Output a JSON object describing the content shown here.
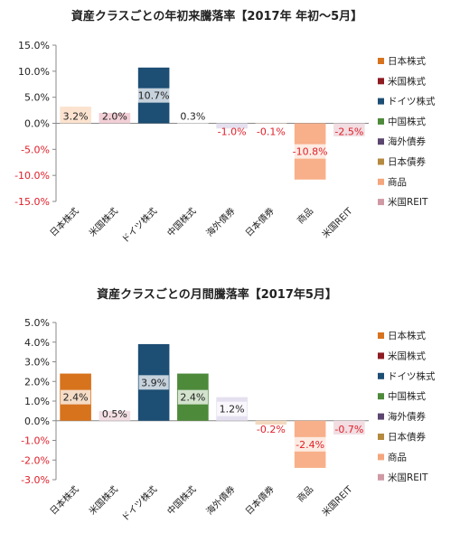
{
  "chart_data": [
    {
      "type": "bar",
      "title": "資産クラスごとの年初来騰落率【2017年 年初～5月】",
      "categories": [
        "日本株式",
        "米国株式",
        "ドイツ株式",
        "中国株式",
        "海外債券",
        "日本債券",
        "商品",
        "米国REIT"
      ],
      "values": [
        3.2,
        2.0,
        10.7,
        0.3,
        -1.0,
        -0.1,
        -10.8,
        -2.5
      ],
      "data_labels": [
        "3.2%",
        "2.0%",
        "10.7%",
        "0.3%",
        "-1.0%",
        "-0.1%",
        "-10.8%",
        "-2.5%"
      ],
      "ylim": [
        -15,
        15
      ],
      "yticks": [
        15,
        10,
        5,
        0,
        -5,
        -10,
        -15
      ],
      "ytick_labels": [
        "15.0%",
        "10.0%",
        "5.0%",
        "0.0%",
        "-5.0%",
        "-10.0%",
        "-15.0%"
      ],
      "xlabel": "",
      "ylabel": "",
      "grid": false,
      "legend_position": "right",
      "colors": [
        "#fbe3cf",
        "#f2cfd6",
        "#1d4e74",
        "#ffffff",
        "#e5e0ef",
        "#fbead8",
        "#f8b08a",
        "#f1dde2"
      ],
      "legend": [
        {
          "label": "日本株式",
          "color": "#d7731d"
        },
        {
          "label": "米国株式",
          "color": "#8e1c22"
        },
        {
          "label": "ドイツ株式",
          "color": "#1d4e74"
        },
        {
          "label": "中国株式",
          "color": "#4d8a3a"
        },
        {
          "label": "海外債券",
          "color": "#5b466f"
        },
        {
          "label": "日本債券",
          "color": "#b48a3e"
        },
        {
          "label": "商品",
          "color": "#f5a67c"
        },
        {
          "label": "米国REIT",
          "color": "#cf9aa5"
        }
      ]
    },
    {
      "type": "bar",
      "title": "資産クラスごとの月間騰落率【2017年5月】",
      "categories": [
        "日本株式",
        "米国株式",
        "ドイツ株式",
        "中国株式",
        "海外債券",
        "日本債券",
        "商品",
        "米国REIT"
      ],
      "values": [
        2.4,
        0.5,
        3.9,
        2.4,
        1.2,
        -0.2,
        -2.4,
        -0.7
      ],
      "data_labels": [
        "2.4%",
        "0.5%",
        "3.9%",
        "2.4%",
        "1.2%",
        "-0.2%",
        "-2.4%",
        "-0.7%"
      ],
      "ylim": [
        -3,
        5
      ],
      "yticks": [
        5,
        4,
        3,
        2,
        1,
        0,
        -1,
        -2,
        -3
      ],
      "ytick_labels": [
        "5.0%",
        "4.0%",
        "3.0%",
        "2.0%",
        "1.0%",
        "0.0%",
        "-1.0%",
        "-2.0%",
        "-3.0%"
      ],
      "xlabel": "",
      "ylabel": "",
      "grid": false,
      "legend_position": "right",
      "colors": [
        "#d7731d",
        "#f1dde2",
        "#1d4e74",
        "#4d8a3a",
        "#e5e0ef",
        "#f3d9c0",
        "#f8b08a",
        "#f1dde2"
      ],
      "legend": [
        {
          "label": "日本株式",
          "color": "#d7731d"
        },
        {
          "label": "米国株式",
          "color": "#8e1c22"
        },
        {
          "label": "ドイツ株式",
          "color": "#1d4e74"
        },
        {
          "label": "中国株式",
          "color": "#4d8a3a"
        },
        {
          "label": "海外債券",
          "color": "#5b466f"
        },
        {
          "label": "日本債券",
          "color": "#b48a3e"
        },
        {
          "label": "商品",
          "color": "#f5a67c"
        },
        {
          "label": "米国REIT",
          "color": "#cf9aa5"
        }
      ]
    }
  ]
}
